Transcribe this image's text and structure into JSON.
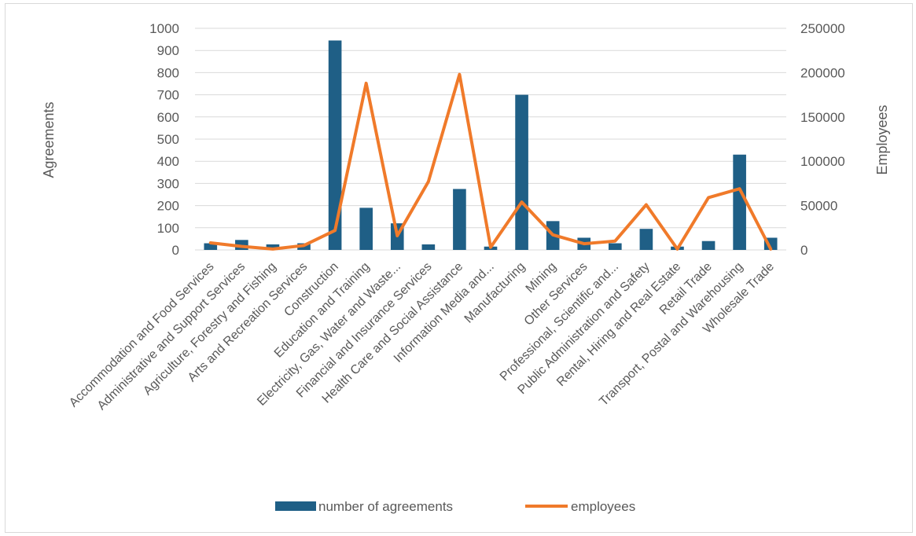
{
  "chart_data": {
    "type": "bar",
    "categories": [
      "Accommodation and Food Services",
      "Administrative and Support Services",
      "Agriculture, Forestry and Fishing",
      "Arts and Recreation Services",
      "Construction",
      "Education and Training",
      "Electricity, Gas, Water and Waste...",
      "Financial and Insurance Services",
      "Health Care and Social Assistance",
      "Information Media and...",
      "Manufacturing",
      "Mining",
      "Other Services",
      "Professional, Scientific and...",
      "Public Administration and Safety",
      "Rental, Hiring and Real Estate",
      "Retail Trade",
      "Transport, Postal and Warehousing",
      "Wholesale Trade"
    ],
    "series": [
      {
        "name": "number of agreements",
        "type": "bar",
        "axis": "left",
        "color": "#1f5f86",
        "values": [
          30,
          45,
          25,
          30,
          945,
          190,
          120,
          25,
          275,
          15,
          700,
          130,
          55,
          30,
          95,
          15,
          40,
          430,
          55
        ]
      },
      {
        "name": "employees",
        "type": "line",
        "axis": "right",
        "color": "#f07a2a",
        "values": [
          8000,
          4000,
          1000,
          5000,
          22000,
          188000,
          16000,
          77000,
          198000,
          3000,
          54000,
          17000,
          7000,
          10000,
          51000,
          1000,
          59000,
          69000,
          1000
        ]
      }
    ],
    "ylabel": "Agreements",
    "y2label": "Employees",
    "ylim": [
      0,
      1000
    ],
    "y2lim": [
      0,
      250000
    ],
    "yticks": [
      "0",
      "100",
      "200",
      "300",
      "400",
      "500",
      "600",
      "700",
      "800",
      "900",
      "1000"
    ],
    "y2ticks": [
      "0",
      "50000",
      "100000",
      "150000",
      "200000",
      "250000"
    ],
    "grid": true,
    "legend": "bottom"
  }
}
